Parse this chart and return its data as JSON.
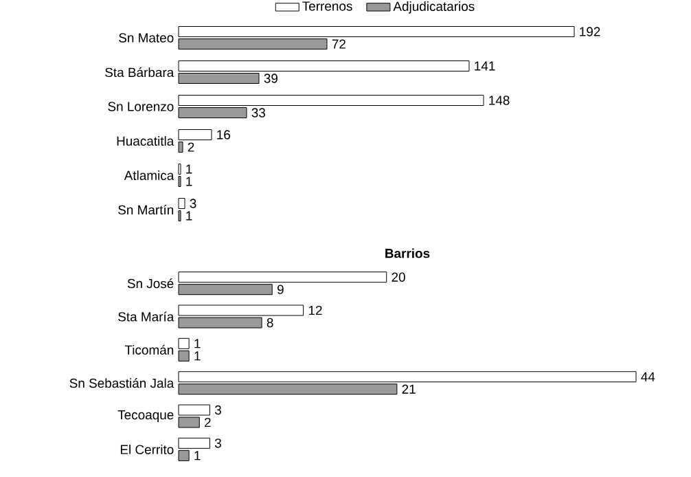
{
  "chart_data": [
    {
      "type": "bar",
      "orientation": "horizontal",
      "categories": [
        "Sn Mateo",
        "Sta Bárbara",
        "Sn Lorenzo",
        "Huacatitla",
        "Atlamica",
        "Sn Martín"
      ],
      "series": [
        {
          "name": "Terrenos",
          "color": "#ffffff",
          "values": [
            192,
            141,
            148,
            16,
            1,
            3
          ]
        },
        {
          "name": "Adjudicatarios",
          "color": "#999999",
          "values": [
            72,
            39,
            33,
            2,
            1,
            1
          ]
        }
      ],
      "data_labels": true,
      "legend": "top"
    },
    {
      "type": "bar",
      "orientation": "horizontal",
      "title": "Barrios",
      "categories": [
        "Sn José",
        "Sta María",
        "Ticomán",
        "Sn Sebastián Jala",
        "Tecoaque",
        "El Cerrito"
      ],
      "series": [
        {
          "color": "#ffffff",
          "values": [
            20,
            12,
            1,
            44,
            3,
            3
          ]
        },
        {
          "color": "#999999",
          "values": [
            9,
            8,
            1,
            21,
            2,
            1
          ]
        }
      ],
      "data_labels": true
    }
  ]
}
